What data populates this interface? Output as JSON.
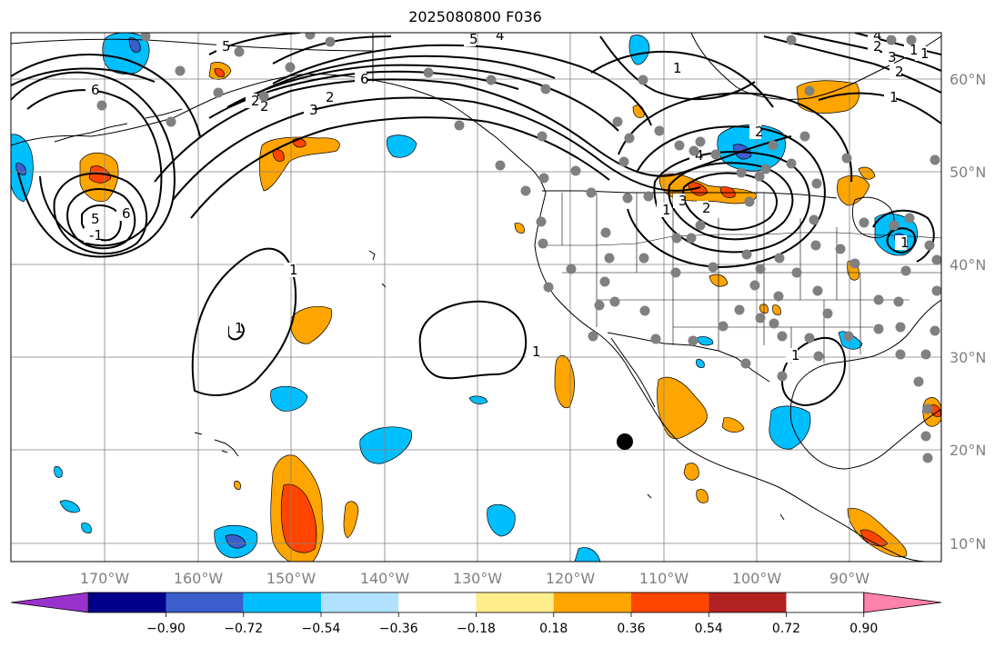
{
  "title": "2025080800 F036",
  "map": {
    "lon_labels": [
      "170°W",
      "160°W",
      "150°W",
      "140°W",
      "130°W",
      "120°W",
      "110°W",
      "100°W",
      "90°W"
    ],
    "lat_labels": [
      "60°N",
      "50°N",
      "40°N",
      "30°N",
      "20°N",
      "10°N"
    ],
    "contour_labels": [
      "5",
      "4",
      "6",
      "3",
      "2",
      "6",
      "1",
      "5",
      "4",
      "3",
      "2",
      "1",
      "-1",
      "6",
      "5",
      "4",
      "3",
      "2",
      "1",
      "2",
      "1",
      "2",
      "1",
      "1",
      "2",
      "1",
      "1",
      "2",
      "1",
      "1"
    ],
    "colors": {
      "land_line": "#000000",
      "grid": "#808080",
      "station_marker": "#808080",
      "highlight_marker": "#000000"
    }
  },
  "colorbar": {
    "ticks": [
      "−0.90",
      "−0.72",
      "−0.54",
      "−0.36",
      "−0.18",
      "0.18",
      "0.36",
      "0.54",
      "0.72",
      "0.90"
    ],
    "colors": [
      "#9932cc",
      "#00008b",
      "#3a5fcd",
      "#00bfff",
      "#b0e2ff",
      "#ffffff",
      "#ffec8b",
      "#ffa500",
      "#ff4500",
      "#b22222",
      "#ff82ab"
    ]
  }
}
